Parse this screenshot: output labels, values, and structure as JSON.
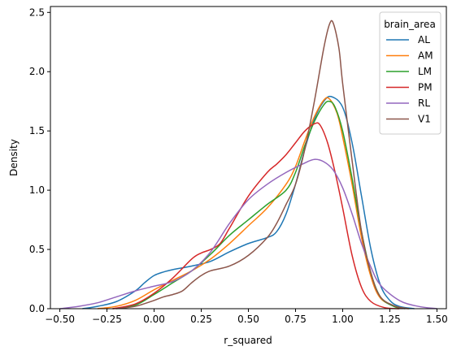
{
  "chart_data": {
    "type": "line",
    "xlabel": "r_squared",
    "ylabel": "Density",
    "xlim": [
      -0.55,
      1.55
    ],
    "ylim": [
      0,
      2.55
    ],
    "x_ticks": [
      -0.5,
      -0.25,
      0.0,
      0.25,
      0.5,
      0.75,
      1.0,
      1.25,
      1.5
    ],
    "x_tick_labels": [
      "−0.50",
      "−0.25",
      "0.00",
      "0.25",
      "0.50",
      "0.75",
      "1.00",
      "1.25",
      "1.50"
    ],
    "y_ticks": [
      0.0,
      0.5,
      1.0,
      1.5,
      2.0,
      2.5
    ],
    "y_tick_labels": [
      "0.0",
      "0.5",
      "1.0",
      "1.5",
      "2.0",
      "2.5"
    ],
    "grid": false,
    "legend": {
      "title": "brain_area",
      "placement": "top-right"
    },
    "series": [
      {
        "name": "AL",
        "color": "#1f77b4",
        "points": [
          [
            -0.38,
            0.0
          ],
          [
            -0.3,
            0.02
          ],
          [
            -0.2,
            0.06
          ],
          [
            -0.1,
            0.15
          ],
          [
            -0.05,
            0.22
          ],
          [
            0.0,
            0.28
          ],
          [
            0.05,
            0.31
          ],
          [
            0.1,
            0.33
          ],
          [
            0.2,
            0.36
          ],
          [
            0.3,
            0.4
          ],
          [
            0.4,
            0.48
          ],
          [
            0.5,
            0.55
          ],
          [
            0.6,
            0.6
          ],
          [
            0.65,
            0.65
          ],
          [
            0.7,
            0.8
          ],
          [
            0.75,
            1.05
          ],
          [
            0.8,
            1.35
          ],
          [
            0.85,
            1.6
          ],
          [
            0.9,
            1.75
          ],
          [
            0.94,
            1.79
          ],
          [
            1.0,
            1.7
          ],
          [
            1.05,
            1.4
          ],
          [
            1.1,
            0.95
          ],
          [
            1.15,
            0.5
          ],
          [
            1.2,
            0.2
          ],
          [
            1.25,
            0.07
          ],
          [
            1.3,
            0.02
          ],
          [
            1.38,
            0.0
          ]
        ]
      },
      {
        "name": "AM",
        "color": "#ff7f0e",
        "points": [
          [
            -0.3,
            0.0
          ],
          [
            -0.2,
            0.02
          ],
          [
            -0.1,
            0.07
          ],
          [
            0.0,
            0.16
          ],
          [
            0.1,
            0.24
          ],
          [
            0.2,
            0.32
          ],
          [
            0.3,
            0.42
          ],
          [
            0.4,
            0.55
          ],
          [
            0.5,
            0.7
          ],
          [
            0.6,
            0.85
          ],
          [
            0.7,
            1.05
          ],
          [
            0.75,
            1.2
          ],
          [
            0.8,
            1.42
          ],
          [
            0.85,
            1.62
          ],
          [
            0.9,
            1.76
          ],
          [
            0.93,
            1.77
          ],
          [
            0.97,
            1.65
          ],
          [
            1.0,
            1.45
          ],
          [
            1.05,
            1.05
          ],
          [
            1.1,
            0.6
          ],
          [
            1.15,
            0.27
          ],
          [
            1.2,
            0.09
          ],
          [
            1.28,
            0.02
          ],
          [
            1.35,
            0.0
          ]
        ]
      },
      {
        "name": "LM",
        "color": "#2ca02c",
        "points": [
          [
            -0.22,
            0.0
          ],
          [
            -0.1,
            0.03
          ],
          [
            0.0,
            0.12
          ],
          [
            0.1,
            0.22
          ],
          [
            0.2,
            0.32
          ],
          [
            0.3,
            0.46
          ],
          [
            0.4,
            0.62
          ],
          [
            0.5,
            0.75
          ],
          [
            0.6,
            0.88
          ],
          [
            0.7,
            1.0
          ],
          [
            0.75,
            1.15
          ],
          [
            0.8,
            1.38
          ],
          [
            0.85,
            1.58
          ],
          [
            0.9,
            1.72
          ],
          [
            0.93,
            1.75
          ],
          [
            0.96,
            1.7
          ],
          [
            1.0,
            1.5
          ],
          [
            1.05,
            1.1
          ],
          [
            1.1,
            0.65
          ],
          [
            1.15,
            0.3
          ],
          [
            1.2,
            0.1
          ],
          [
            1.27,
            0.02
          ],
          [
            1.33,
            0.0
          ]
        ]
      },
      {
        "name": "PM",
        "color": "#d62728",
        "points": [
          [
            -0.22,
            0.0
          ],
          [
            -0.1,
            0.04
          ],
          [
            0.0,
            0.13
          ],
          [
            0.1,
            0.26
          ],
          [
            0.2,
            0.42
          ],
          [
            0.25,
            0.47
          ],
          [
            0.3,
            0.5
          ],
          [
            0.35,
            0.55
          ],
          [
            0.4,
            0.68
          ],
          [
            0.5,
            0.95
          ],
          [
            0.6,
            1.15
          ],
          [
            0.65,
            1.22
          ],
          [
            0.7,
            1.3
          ],
          [
            0.75,
            1.4
          ],
          [
            0.8,
            1.5
          ],
          [
            0.85,
            1.56
          ],
          [
            0.88,
            1.55
          ],
          [
            0.92,
            1.4
          ],
          [
            0.96,
            1.15
          ],
          [
            1.0,
            0.85
          ],
          [
            1.05,
            0.45
          ],
          [
            1.1,
            0.18
          ],
          [
            1.15,
            0.06
          ],
          [
            1.22,
            0.01
          ],
          [
            1.3,
            0.0
          ]
        ]
      },
      {
        "name": "RL",
        "color": "#9467bd",
        "points": [
          [
            -0.5,
            0.0
          ],
          [
            -0.4,
            0.02
          ],
          [
            -0.3,
            0.05
          ],
          [
            -0.2,
            0.1
          ],
          [
            -0.1,
            0.15
          ],
          [
            0.0,
            0.19
          ],
          [
            0.1,
            0.23
          ],
          [
            0.2,
            0.32
          ],
          [
            0.3,
            0.48
          ],
          [
            0.4,
            0.72
          ],
          [
            0.5,
            0.92
          ],
          [
            0.6,
            1.05
          ],
          [
            0.7,
            1.15
          ],
          [
            0.8,
            1.23
          ],
          [
            0.85,
            1.26
          ],
          [
            0.9,
            1.24
          ],
          [
            0.95,
            1.17
          ],
          [
            1.0,
            1.02
          ],
          [
            1.05,
            0.8
          ],
          [
            1.1,
            0.55
          ],
          [
            1.15,
            0.35
          ],
          [
            1.2,
            0.2
          ],
          [
            1.3,
            0.07
          ],
          [
            1.4,
            0.02
          ],
          [
            1.5,
            0.0
          ]
        ]
      },
      {
        "name": "V1",
        "color": "#8c564b",
        "points": [
          [
            -0.2,
            0.0
          ],
          [
            -0.1,
            0.02
          ],
          [
            0.0,
            0.07
          ],
          [
            0.05,
            0.1
          ],
          [
            0.1,
            0.12
          ],
          [
            0.15,
            0.15
          ],
          [
            0.2,
            0.22
          ],
          [
            0.25,
            0.28
          ],
          [
            0.3,
            0.32
          ],
          [
            0.4,
            0.36
          ],
          [
            0.5,
            0.45
          ],
          [
            0.6,
            0.6
          ],
          [
            0.65,
            0.72
          ],
          [
            0.7,
            0.88
          ],
          [
            0.75,
            1.05
          ],
          [
            0.8,
            1.35
          ],
          [
            0.85,
            1.75
          ],
          [
            0.9,
            2.2
          ],
          [
            0.93,
            2.4
          ],
          [
            0.95,
            2.41
          ],
          [
            0.98,
            2.2
          ],
          [
            1.0,
            1.9
          ],
          [
            1.05,
            1.25
          ],
          [
            1.1,
            0.65
          ],
          [
            1.15,
            0.3
          ],
          [
            1.2,
            0.1
          ],
          [
            1.28,
            0.02
          ],
          [
            1.35,
            0.0
          ]
        ]
      }
    ]
  }
}
